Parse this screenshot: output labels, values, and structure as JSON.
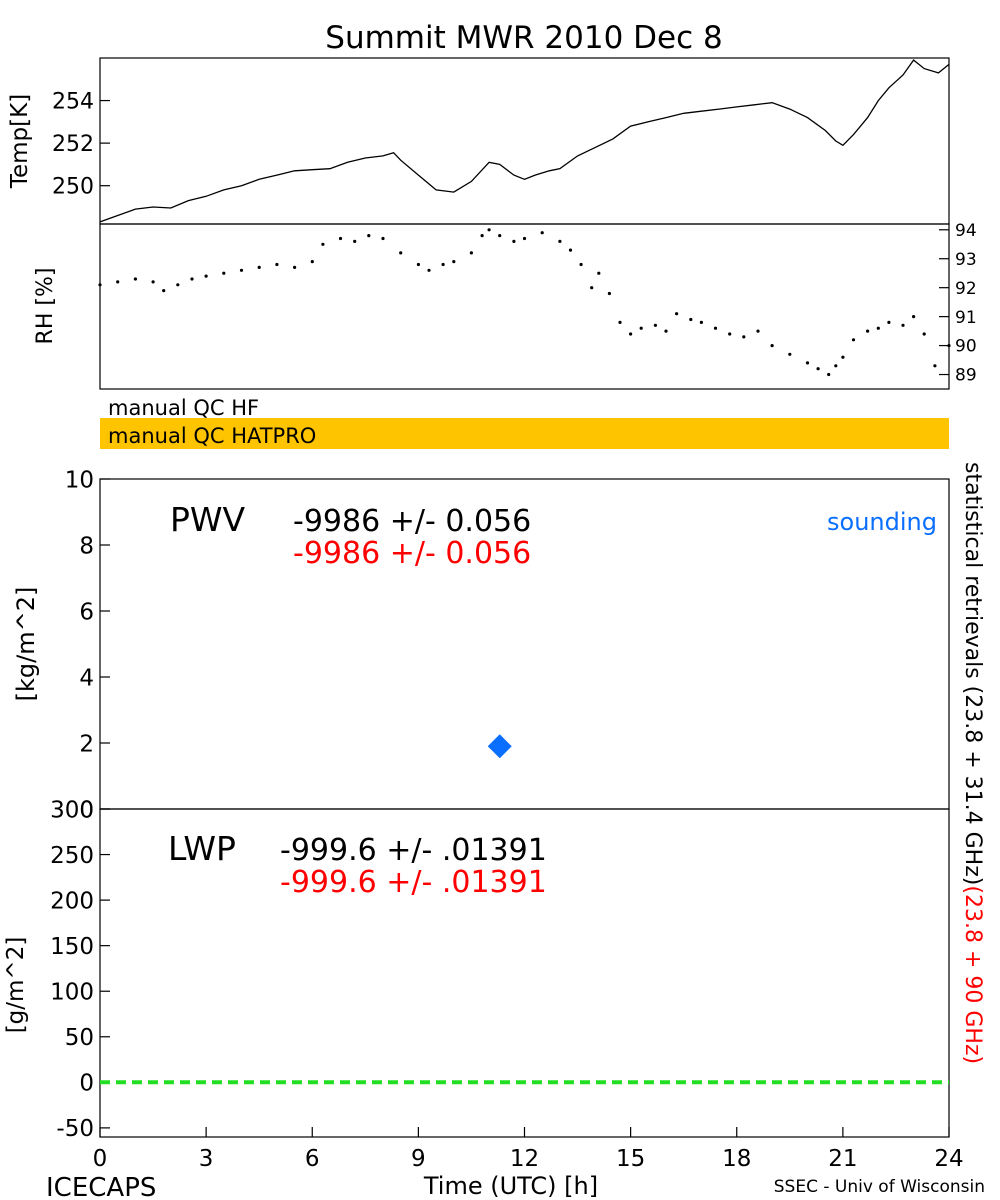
{
  "title": "Summit MWR 2010 Dec  8",
  "footer": {
    "left": "ICECAPS",
    "center": "Time (UTC) [h]",
    "right": "SSEC - Univ of Wisconsin"
  },
  "right_axis_text": {
    "black": "statistical retrievals (23.8 + 31.4 GHz)",
    "red": "(23.8 + 90 GHz)"
  },
  "colors": {
    "line": "#000000",
    "red": "#ff0000",
    "sounding": "#0a6eff",
    "hatpro_bar": "#ffc400",
    "zero_line": "#22dd22"
  },
  "chart_data": [
    {
      "type": "line",
      "panel": "temperature",
      "ylabel": "Temp[K]",
      "xlim": [
        0,
        24
      ],
      "ylim": [
        248.2,
        256
      ],
      "yticks": [
        250,
        252,
        254
      ],
      "series": [
        {
          "x": [
            0,
            0.5,
            1,
            1.5,
            2,
            2.5,
            3,
            3.5,
            4,
            4.5,
            5,
            5.5,
            6,
            6.5,
            7,
            7.5,
            8,
            8.3,
            8.5,
            9,
            9.5,
            10,
            10.5,
            11,
            11.3,
            11.7,
            12,
            12.3,
            12.7,
            13,
            13.5,
            14,
            14.5,
            15,
            15.5,
            16,
            16.5,
            17,
            17.5,
            18,
            18.5,
            19,
            19.5,
            20,
            20.5,
            20.8,
            21,
            21.3,
            21.7,
            22,
            22.3,
            22.7,
            23,
            23.3,
            23.7,
            24
          ],
          "y": [
            248.3,
            248.6,
            248.9,
            249.0,
            248.95,
            249.3,
            249.5,
            249.8,
            250.0,
            250.3,
            250.5,
            250.7,
            250.75,
            250.8,
            251.1,
            251.3,
            251.4,
            251.55,
            251.2,
            250.5,
            249.8,
            249.7,
            250.2,
            251.1,
            251.0,
            250.5,
            250.3,
            250.5,
            250.7,
            250.8,
            251.4,
            251.8,
            252.2,
            252.8,
            253.0,
            253.2,
            253.4,
            253.5,
            253.6,
            253.7,
            253.8,
            253.9,
            253.6,
            253.2,
            252.6,
            252.1,
            251.9,
            252.4,
            253.2,
            254.0,
            254.6,
            255.2,
            255.9,
            255.5,
            255.3,
            255.7
          ]
        }
      ]
    },
    {
      "type": "scatter",
      "panel": "relative-humidity",
      "ylabel": "RH [%]",
      "xlim": [
        0,
        24
      ],
      "ylim": [
        88.5,
        94.2
      ],
      "yticks": [
        89,
        90,
        91,
        92,
        93,
        94
      ],
      "series": [
        {
          "x": [
            0,
            0.5,
            1,
            1.5,
            1.8,
            2.2,
            2.6,
            3,
            3.5,
            4,
            4.5,
            5,
            5.5,
            6,
            6.3,
            6.8,
            7.2,
            7.6,
            8,
            8.5,
            9,
            9.3,
            9.7,
            10,
            10.5,
            10.8,
            11,
            11.3,
            11.7,
            12,
            12.5,
            13,
            13.3,
            13.6,
            13.9,
            14.1,
            14.4,
            14.7,
            15,
            15.3,
            15.7,
            16,
            16.3,
            16.7,
            17,
            17.4,
            17.8,
            18.2,
            18.6,
            19,
            19.5,
            20,
            20.3,
            20.6,
            20.8,
            21,
            21.3,
            21.7,
            22,
            22.3,
            22.7,
            23,
            23.3,
            23.6,
            24
          ],
          "y": [
            92.1,
            92.2,
            92.3,
            92.2,
            91.9,
            92.1,
            92.3,
            92.4,
            92.5,
            92.6,
            92.7,
            92.8,
            92.7,
            92.9,
            93.5,
            93.7,
            93.6,
            93.8,
            93.7,
            93.2,
            92.8,
            92.6,
            92.8,
            92.9,
            93.2,
            93.8,
            94.0,
            93.8,
            93.6,
            93.7,
            93.9,
            93.6,
            93.3,
            92.8,
            92.0,
            92.5,
            91.8,
            90.8,
            90.4,
            90.6,
            90.7,
            90.5,
            91.1,
            90.9,
            90.8,
            90.6,
            90.4,
            90.3,
            90.5,
            90.0,
            89.7,
            89.4,
            89.2,
            89.0,
            89.3,
            89.6,
            90.2,
            90.5,
            90.6,
            90.8,
            90.7,
            91.0,
            90.4,
            89.3,
            90.0
          ]
        }
      ]
    },
    {
      "type": "bar",
      "panel": "qc-flags",
      "rows": [
        {
          "label": "manual QC HF",
          "flagged": false
        },
        {
          "label": "manual QC HATPRO",
          "flagged": true
        }
      ]
    },
    {
      "type": "scatter",
      "panel": "precipitable-water-vapor",
      "ylabel": "[kg/m^2]",
      "panel_label": "PWV",
      "stat_black": "-9986 +/- 0.056",
      "stat_red": "-9986 +/- 0.056",
      "legend": "sounding",
      "legend_position": "top-right",
      "xlim": [
        0,
        24
      ],
      "ylim": [
        0,
        10
      ],
      "yticks": [
        0,
        2,
        4,
        6,
        8,
        10
      ],
      "points": [
        {
          "x": 11.3,
          "y": 1.9
        }
      ]
    },
    {
      "type": "line",
      "panel": "liquid-water-path",
      "ylabel": "[g/m^2]",
      "panel_label": "LWP",
      "stat_black": "-999.6 +/- .01391",
      "stat_red": "-999.6 +/- .01391",
      "xlim": [
        0,
        24
      ],
      "ylim": [
        -60,
        300
      ],
      "yticks": [
        -50,
        0,
        50,
        100,
        150,
        200,
        250,
        300
      ],
      "xticks": [
        0,
        3,
        6,
        9,
        12,
        15,
        18,
        21,
        24
      ],
      "series": [
        {
          "x": [
            0,
            24
          ],
          "y": [
            0,
            0
          ]
        }
      ]
    }
  ]
}
